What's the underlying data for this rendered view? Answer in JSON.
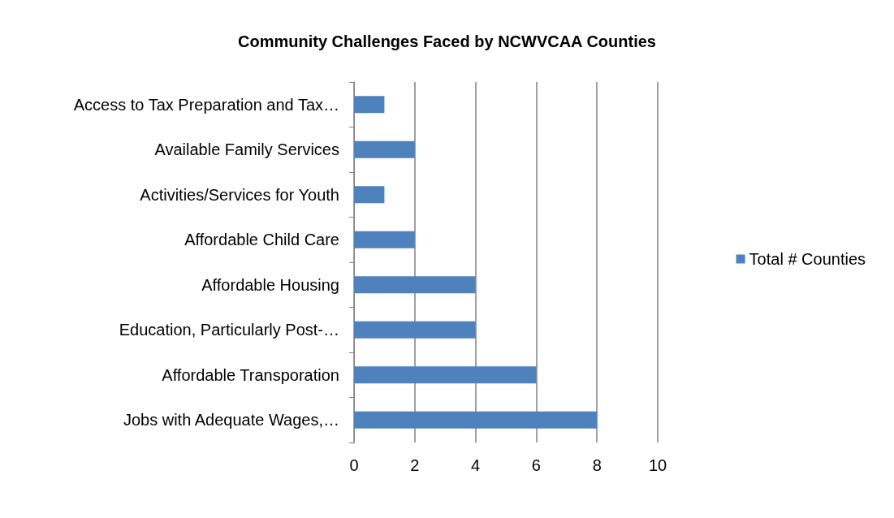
{
  "chart_data": {
    "type": "bar",
    "orientation": "horizontal",
    "title": "Community Challenges Faced by NCWVCAA Counties",
    "categories": [
      "Access to Tax Preparation and Tax…",
      "Available Family Services",
      "Activities/Services for Youth",
      "Affordable Child Care",
      "Affordable Housing",
      "Education, Particularly Post-…",
      "Affordable Transporation",
      "Jobs with Adequate Wages,…"
    ],
    "series": [
      {
        "name": "Total # Counties",
        "color": "#4f81bd",
        "values": [
          1,
          2,
          1,
          2,
          4,
          4,
          6,
          8
        ]
      }
    ],
    "xlim": [
      0,
      10
    ],
    "xticks": [
      0,
      2,
      4,
      6,
      8,
      10
    ],
    "grid": "x",
    "legend": "right"
  }
}
